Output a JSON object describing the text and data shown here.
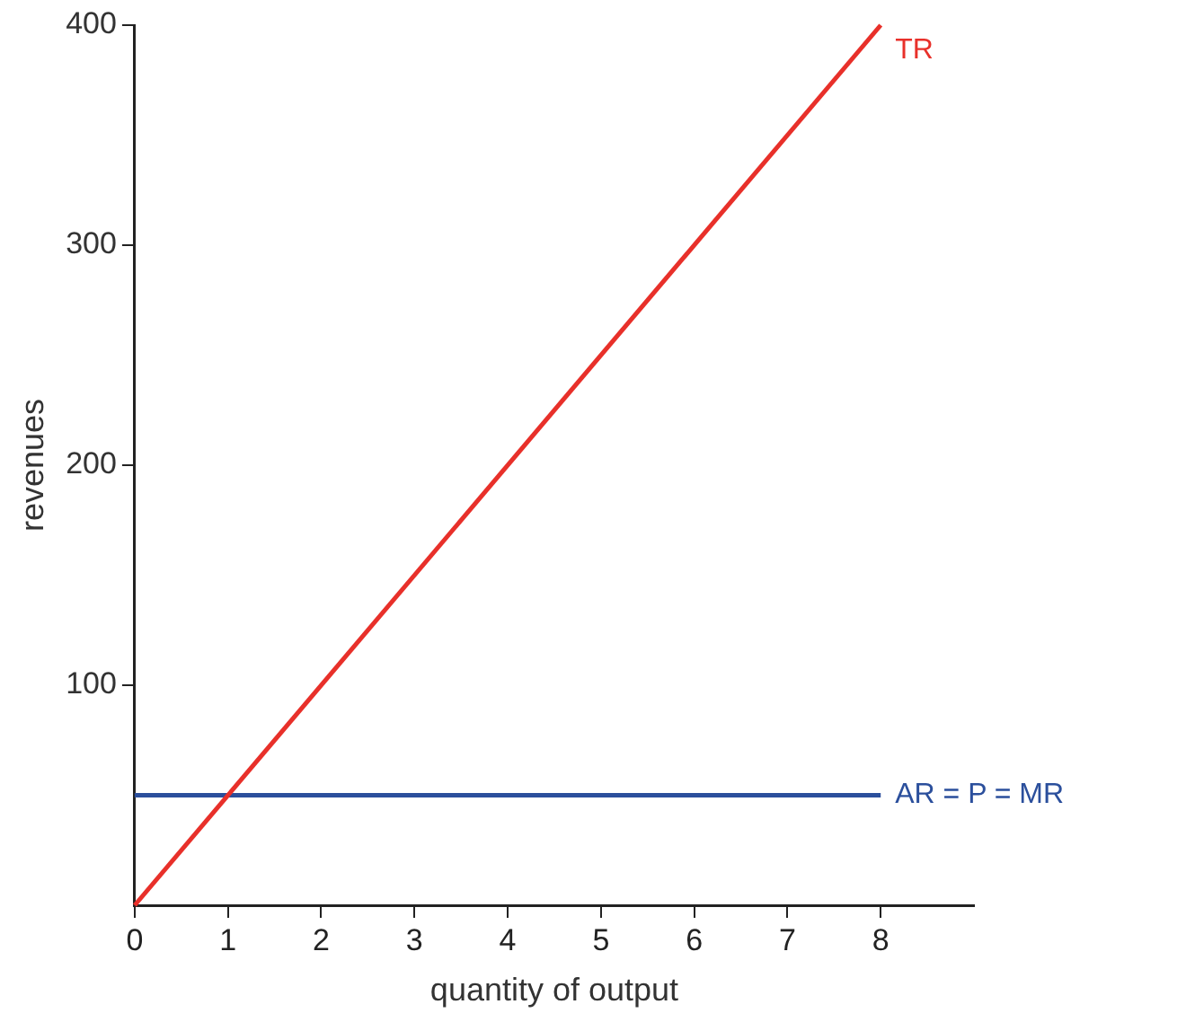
{
  "chart_data": {
    "type": "line",
    "xlabel": "quantity of output",
    "ylabel": "revenues",
    "xlim": [
      0,
      9
    ],
    "xticks": [
      0,
      1,
      2,
      3,
      4,
      5,
      6,
      7,
      8
    ],
    "ylim": [
      0,
      400
    ],
    "yticks": [
      100,
      200,
      300,
      400
    ],
    "grid": false,
    "legend": false,
    "marker": "none",
    "line_style": "solid",
    "x": [
      0,
      8
    ],
    "series": [
      {
        "name": "TR",
        "color": "#e8302a",
        "values": [
          0,
          400
        ]
      },
      {
        "name": "AR = P = MR",
        "color": "#2b4f9c",
        "values": [
          50,
          50
        ]
      }
    ]
  }
}
